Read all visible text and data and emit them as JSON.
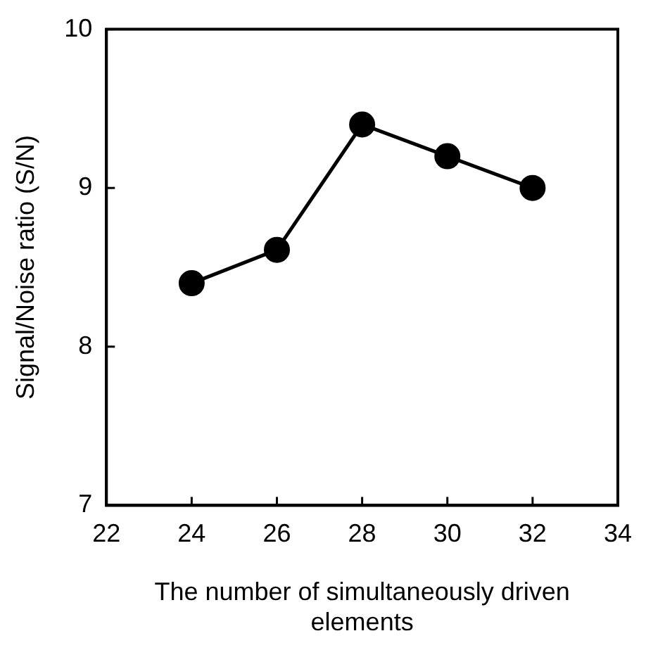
{
  "chart_data": {
    "type": "line",
    "xlabel": "The number of simultaneously driven elements",
    "ylabel": "Signal/Noise ratio (S/N)",
    "x": [
      24,
      26,
      28,
      30,
      32
    ],
    "series": [
      {
        "color": "#000000",
        "values": [
          8.4,
          8.61,
          9.4,
          9.2,
          9.0
        ]
      }
    ],
    "xlim": [
      22,
      34
    ],
    "xticks": [
      22,
      24,
      26,
      28,
      30,
      32,
      34
    ],
    "ylim": [
      7,
      10
    ],
    "yticks": [
      7,
      8,
      9,
      10
    ],
    "grid": false,
    "legend": false,
    "marker": "circle",
    "line_style": "solid"
  }
}
